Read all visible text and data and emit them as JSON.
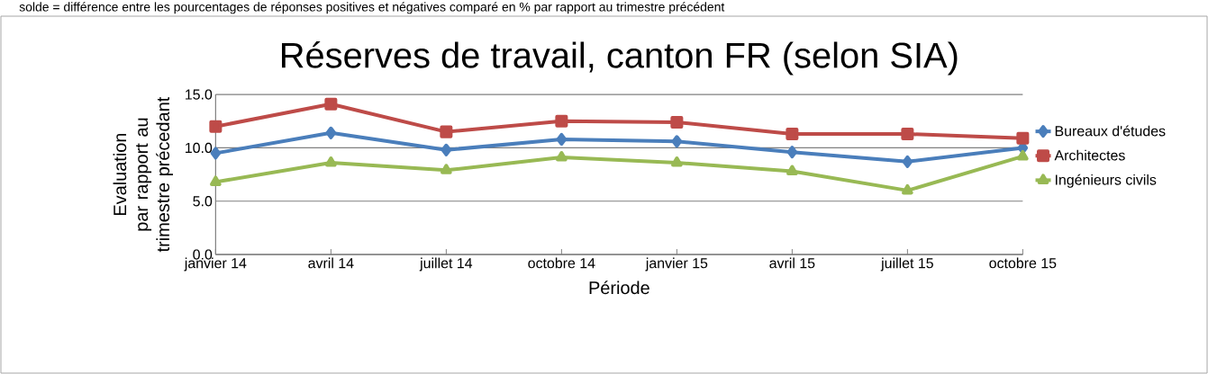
{
  "chart_data": {
    "type": "line",
    "title": "Réserves de travail, canton FR (selon SIA)",
    "subtitle": "solde = différence entre les pourcentages de réponses positives et négatives comparé en % par rapport au trimestre précédent",
    "xlabel": "Période",
    "ylabel": "Evaluation par rapport au trimestre précedant",
    "categories": [
      "janvier 14",
      "avril 14",
      "juillet 14",
      "octobre 14",
      "janvier 15",
      "avril 15",
      "juillet 15",
      "octobre 15"
    ],
    "series": [
      {
        "name": "Bureaux d'études",
        "color": "#4a7ebb",
        "marker": "diamond",
        "values": [
          9.5,
          11.4,
          9.8,
          10.8,
          10.6,
          9.6,
          8.7,
          10.0
        ]
      },
      {
        "name": "Architectes",
        "color": "#be4b48",
        "marker": "square",
        "values": [
          12.0,
          14.1,
          11.5,
          12.5,
          12.4,
          11.3,
          11.3,
          10.9
        ]
      },
      {
        "name": "Ingénieurs civils",
        "color": "#98b954",
        "marker": "triangle",
        "values": [
          6.8,
          8.6,
          7.9,
          9.1,
          8.6,
          7.8,
          6.0,
          9.2
        ]
      }
    ],
    "ylim": [
      0,
      15
    ],
    "yticks": [
      {
        "value": 0,
        "label": "0.0"
      },
      {
        "value": 5,
        "label": "5.0"
      },
      {
        "value": 10,
        "label": "10.0"
      },
      {
        "value": 15,
        "label": "15.0"
      }
    ],
    "grid": "y",
    "legend": "right",
    "line_style": "solid"
  }
}
